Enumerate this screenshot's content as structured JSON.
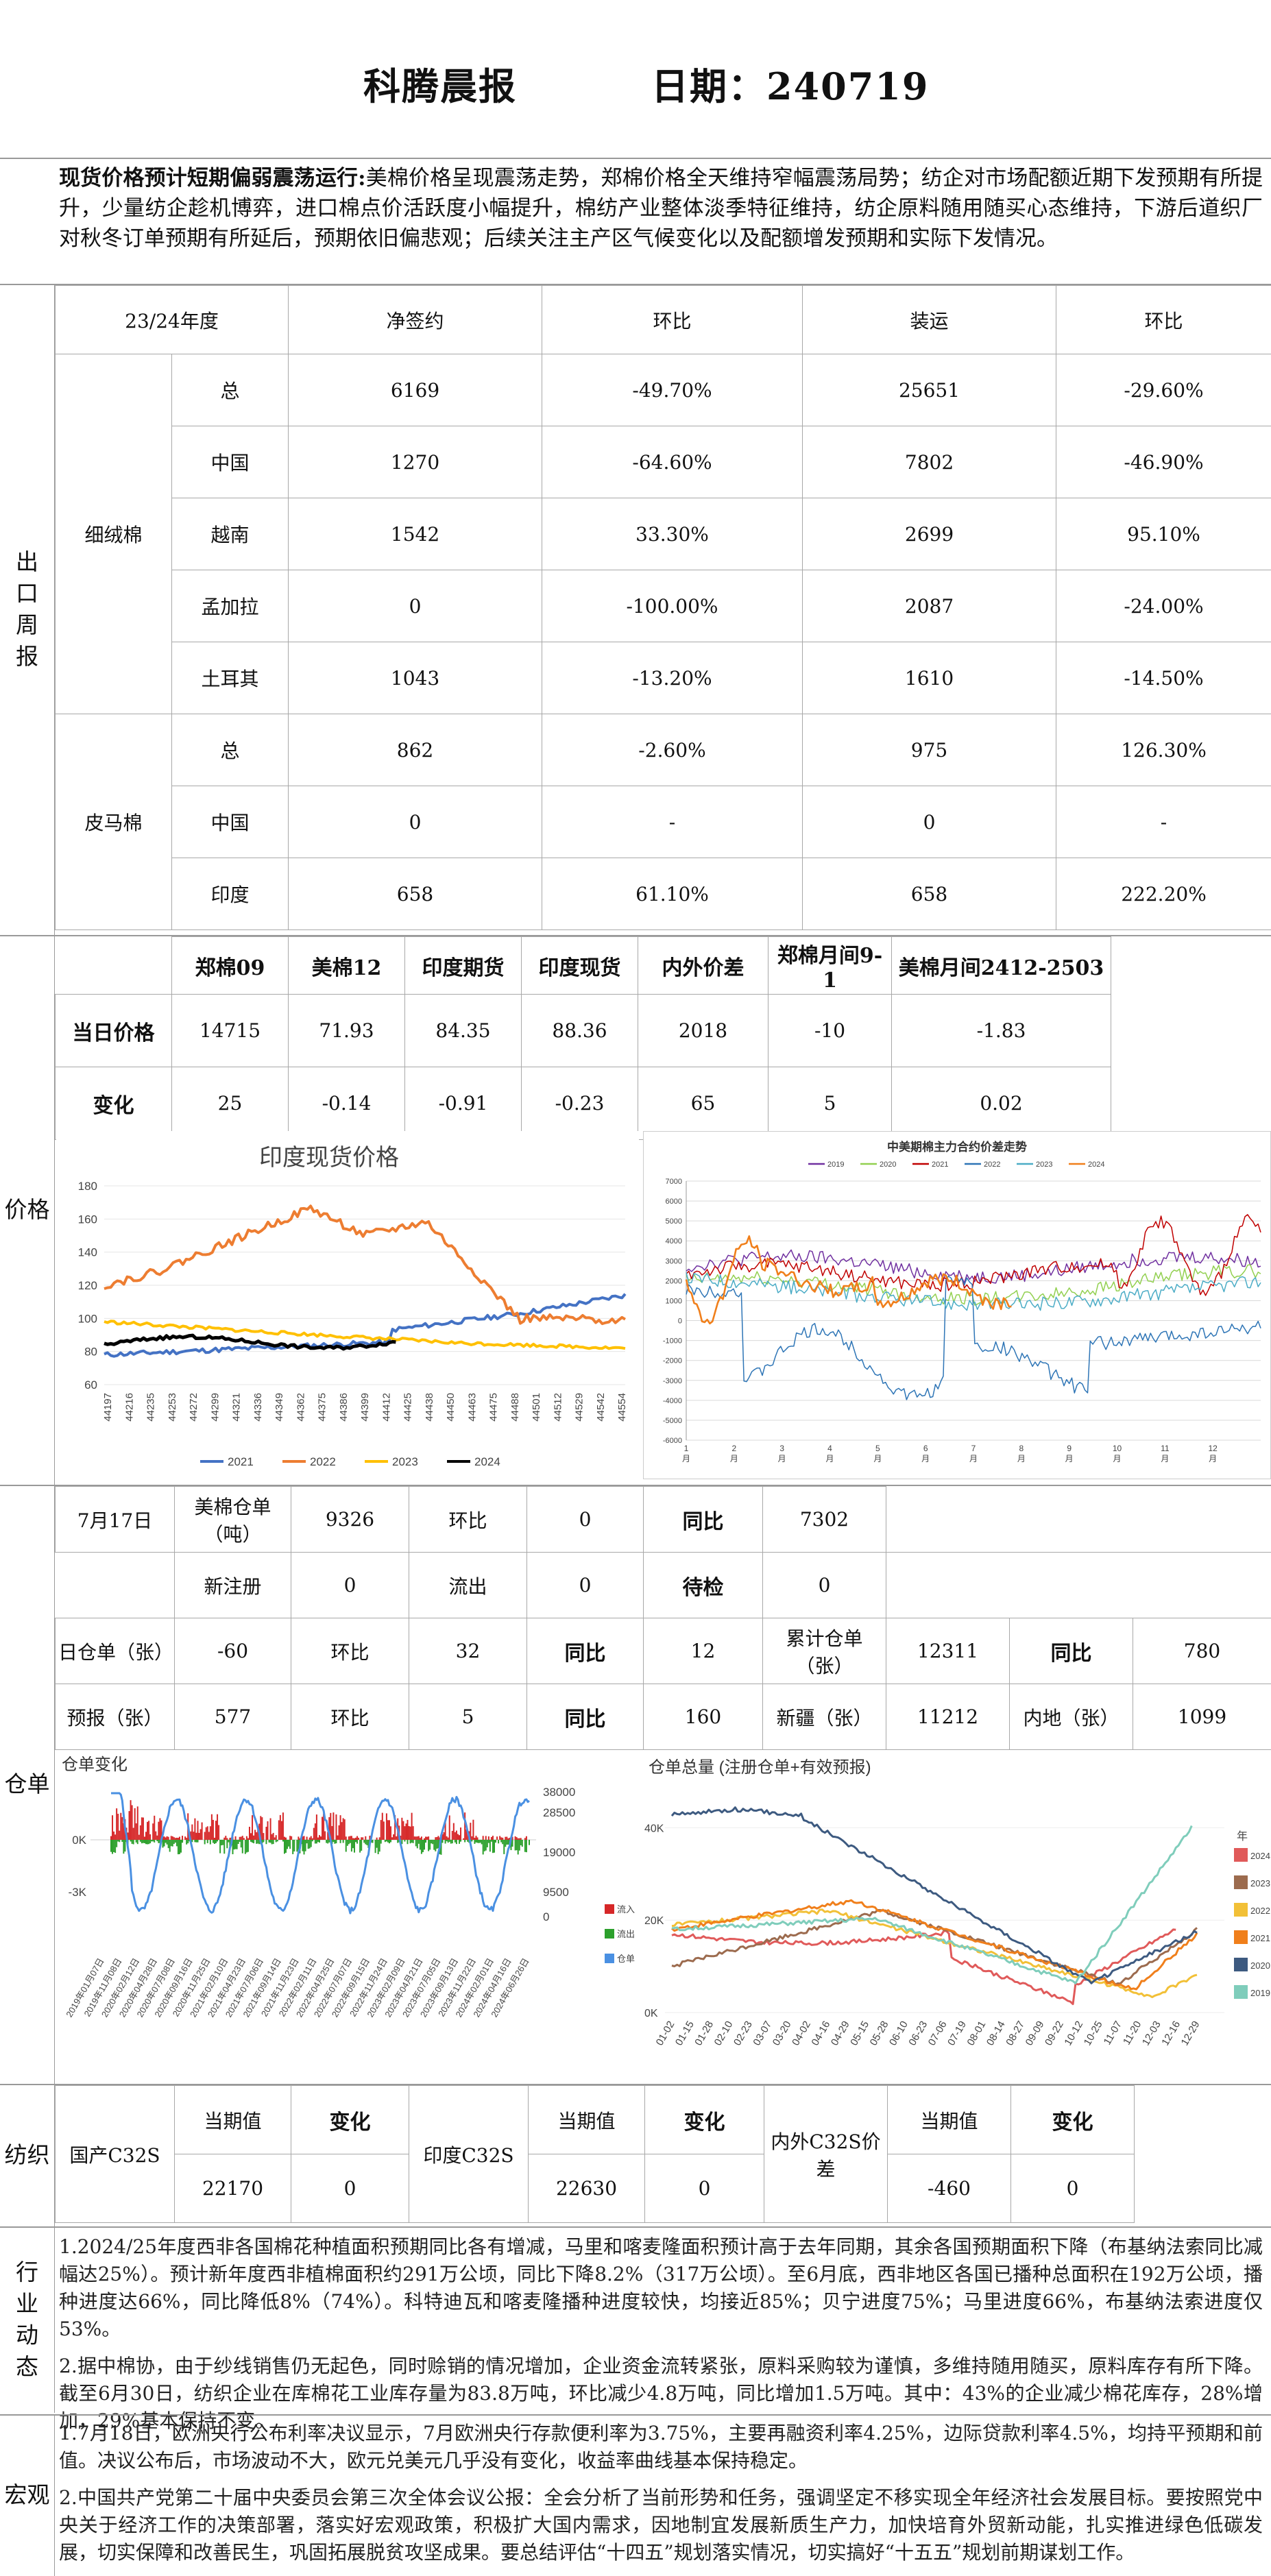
{
  "header": {
    "title": "科腾晨报",
    "date": "日期：240719"
  },
  "summary": {
    "lead": "现货价格预计短期偏弱震荡运行:",
    "body": "美棉价格呈现震荡走势，郑棉价格全天维持窄幅震荡局势；纺企对市场配额近期下发预期有所提升，少量纺企趁机博弈，进口棉点价活跃度小幅提升，棉纺产业整体淡季特征维持，纺企原料随用随买心态维持，下游后道织厂对秋冬订单预期有所延后，预期依旧偏悲观；后续关注主产区气候变化以及配额增发预期和实际下发情况。"
  },
  "sections": {
    "export": "出口周报",
    "price": "价格",
    "warehouse": "仓单",
    "textile": "纺织",
    "industry": "行业动态",
    "macro": "宏观"
  },
  "export": {
    "headers": [
      "23/24年度",
      "净签约",
      "环比",
      "装运",
      "环比"
    ],
    "groups": [
      {
        "name": "细绒棉",
        "rows": [
          {
            "region": "总",
            "net": "6169",
            "net_chg": "-49.70%",
            "ship": "25651",
            "ship_chg": "-29.60%"
          },
          {
            "region": "中国",
            "net": "1270",
            "net_chg": "-64.60%",
            "ship": "7802",
            "ship_chg": "-46.90%"
          },
          {
            "region": "越南",
            "net": "1542",
            "net_chg": "33.30%",
            "ship": "2699",
            "ship_chg": "95.10%"
          },
          {
            "region": "孟加拉",
            "net": "0",
            "net_chg": "-100.00%",
            "ship": "2087",
            "ship_chg": "-24.00%"
          },
          {
            "region": "土耳其",
            "net": "1043",
            "net_chg": "-13.20%",
            "ship": "1610",
            "ship_chg": "-14.50%"
          }
        ]
      },
      {
        "name": "皮马棉",
        "rows": [
          {
            "region": "总",
            "net": "862",
            "net_chg": "-2.60%",
            "ship": "975",
            "ship_chg": "126.30%"
          },
          {
            "region": "中国",
            "net": "0",
            "net_chg": "-",
            "ship": "0",
            "ship_chg": "-"
          },
          {
            "region": "印度",
            "net": "658",
            "net_chg": "61.10%",
            "ship": "658",
            "ship_chg": "222.20%"
          }
        ]
      }
    ]
  },
  "price": {
    "headers": [
      "",
      "郑棉09",
      "美棉12",
      "印度期货",
      "印度现货",
      "内外价差",
      "郑棉月间9-1",
      "美棉月间2412-2503"
    ],
    "today": [
      "当日价格",
      "14715",
      "71.93",
      "84.35",
      "88.36",
      "2018",
      "-10",
      "-1.83"
    ],
    "change": [
      "变化",
      "25",
      "-0.14",
      "-0.91",
      "-0.23",
      "65",
      "5",
      "0.02"
    ]
  },
  "chart_india": {
    "type": "line",
    "title": "印度现货价格",
    "y_ticks": [
      "180",
      "160",
      "140",
      "120",
      "100",
      "80",
      "60"
    ],
    "x_ticks": [
      "44197",
      "44216",
      "44235",
      "44253",
      "44272",
      "44299",
      "44321",
      "44336",
      "44349",
      "44362",
      "44375",
      "44386",
      "44399",
      "44412",
      "44425",
      "44438",
      "44450",
      "44463",
      "44475",
      "44488",
      "44501",
      "44512",
      "44529",
      "44542",
      "44554"
    ],
    "legend": [
      "2021",
      "2022",
      "2023",
      "2024"
    ],
    "colors": [
      "#4472c4",
      "#ed7d31",
      "#ffc000",
      "#000000"
    ]
  },
  "chart_spread": {
    "type": "line",
    "title": "中美期棉主力合约价差走势",
    "y_ticks": [
      "7000",
      "6000",
      "5000",
      "4000",
      "3000",
      "2000",
      "1000",
      "0",
      "-1000",
      "-2000",
      "-3000",
      "-4000",
      "-5000",
      "-6000"
    ],
    "x_ticks": [
      "1\n月",
      "2\n月",
      "3\n月",
      "4\n月",
      "5\n月",
      "6\n月",
      "7\n月",
      "8\n月",
      "9\n月",
      "10\n月",
      "11\n月",
      "12\n月"
    ],
    "legend": [
      "2019",
      "2020",
      "2021",
      "2022",
      "2023",
      "2024"
    ],
    "colors": [
      "#7030a0",
      "#92d050",
      "#c00000",
      "#2e75b6",
      "#4bacc6",
      "#f07f1b"
    ]
  },
  "warehouse": {
    "r1": [
      "7月17日",
      "美棉仓单（吨）",
      "9326",
      "环比",
      "0",
      "同比",
      "7302"
    ],
    "r2": [
      "新注册",
      "0",
      "流出",
      "0",
      "待检",
      "0"
    ],
    "r3": [
      "日仓单（张）",
      "-60",
      "环比",
      "32",
      "同比",
      "12",
      "累计仓单（张）",
      "12311",
      "同比",
      "780"
    ],
    "r4": [
      "预报（张）",
      "577",
      "环比",
      "5",
      "同比",
      "160",
      "新疆（张）",
      "11212",
      "内地（张）",
      "1099"
    ]
  },
  "chart_change": {
    "title": "仓单变化",
    "y_left": [
      "0K",
      "-3K"
    ],
    "y_right": [
      "38000",
      "28500",
      "19000",
      "9500",
      "0"
    ],
    "legend": [
      "流入",
      "流出",
      "仓单"
    ],
    "colors": [
      "#d62728",
      "#2ca02c",
      "#4a90e2"
    ],
    "x_ticks": [
      "2019年01月07日",
      "2019年11月08日",
      "2020年02月12日",
      "2020年04月28日",
      "2020年07月08日",
      "2020年09月16日",
      "2020年11月25日",
      "2021年02月10日",
      "2021年04月23日",
      "2021年07月06日",
      "2021年09月14日",
      "2021年11月23日",
      "2022年02月11日",
      "2022年04月25日",
      "2022年07月07日",
      "2022年09月15日",
      "2022年11月24日",
      "2023年02月09日",
      "2023年04月21日",
      "2023年07月05日",
      "2023年09月13日",
      "2023年11月22日",
      "2024年02月01日",
      "2024年04月16日",
      "2024年06月26日"
    ]
  },
  "chart_total": {
    "title": "仓单总量 (注册仓单+有效预报)",
    "y_ticks": [
      "40K",
      "20K",
      "0K"
    ],
    "legend_title": "年",
    "legend": [
      "2024",
      "2023",
      "2022",
      "2021",
      "2020",
      "2019"
    ],
    "colors": [
      "#e05a5a",
      "#9c6b4e",
      "#f2c037",
      "#f07f1b",
      "#3d5a80",
      "#7fcdbb"
    ],
    "x_ticks": [
      "01-02",
      "01-15",
      "01-28",
      "02-10",
      "02-23",
      "03-07",
      "03-20",
      "04-02",
      "04-16",
      "04-29",
      "05-15",
      "05-28",
      "06-10",
      "06-23",
      "07-06",
      "07-19",
      "08-01",
      "08-14",
      "08-27",
      "09-09",
      "09-22",
      "10-12",
      "10-25",
      "11-07",
      "11-20",
      "12-03",
      "12-16",
      "12-29"
    ]
  },
  "textile": {
    "row_top": [
      "当期值",
      "变化",
      "当期值",
      "变化",
      "当期值",
      "变化"
    ],
    "labels": [
      "国产C32S",
      "印度C32S",
      "内外C32S价差"
    ],
    "values": [
      "22170",
      "0",
      "22630",
      "0",
      "-460",
      "0"
    ]
  },
  "industry": {
    "p1": "1.2024/25年度西非各国棉花种植面积预期同比各有增减，马里和喀麦隆面积预计高于去年同期，其余各国预期面积下降（布基纳法索同比减幅达25%）。预计新年度西非植棉面积约291万公顷，同比下降8.2%（317万公顷）。至6月底，西非地区各国已播种总面积在192万公顷，播种进度达66%，同比降低8%（74%）。科特迪瓦和喀麦隆播种进度较快，均接近85%；贝宁进度75%；马里进度66%，布基纳法索进度仅53%。",
    "p2": "2.据中棉协，由于纱线销售仍无起色，同时赊销的情况增加，企业资金流转紧张，原料采购较为谨慎，多维持随用随买，原料库存有所下降。截至6月30日，纺织企业在库棉花工业库存量为83.8万吨，环比减少4.8万吨，同比增加1.5万吨。其中：43%的企业减少棉花库存，28%增加，29%基本保持不变。"
  },
  "macro": {
    "p1": "1.7月18日，欧洲央行公布利率决议显示，7月欧洲央行存款便利率为3.75%，主要再融资利率4.25%，边际贷款利率4.5%，均持平预期和前值。决议公布后，市场波动不大，欧元兑美元几乎没有变化，收益率曲线基本保持稳定。",
    "p2": "2.中国共产党第二十届中央委员会第三次全体会议公报：全会分析了当前形势和任务，强调坚定不移实现全年经济社会发展目标。要按照党中央关于经济工作的决策部署，落实好宏观政策，积极扩大国内需求，因地制宜发展新质生产力，加快培育外贸新动能，扎实推进绿色低碳发展，切实保障和改善民生，巩固拓展脱贫攻坚成果。要总结评估“十四五”规划落实情况，切实搞好“十五五”规划前期谋划工作。"
  }
}
